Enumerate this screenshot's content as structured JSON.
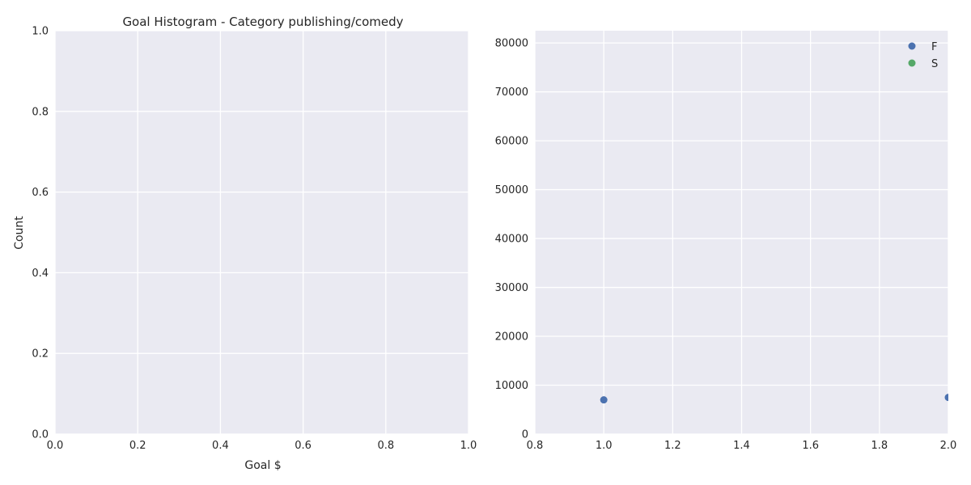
{
  "colors": {
    "plot_background": "#eaeaf2",
    "grid": "#ffffff",
    "text": "#262626",
    "series_F": "#4c72b0",
    "series_S": "#55a868"
  },
  "chart_data": [
    {
      "type": "bar",
      "title": "Goal Histogram - Category publishing/comedy",
      "xlabel": "Goal $",
      "ylabel": "Count",
      "xlim": [
        0,
        1
      ],
      "ylim": [
        0,
        1
      ],
      "xticks": [
        "0.0",
        "0.2",
        "0.4",
        "0.6",
        "0.8",
        "1.0"
      ],
      "yticks": [
        "0.0",
        "0.2",
        "0.4",
        "0.6",
        "0.8",
        "1.0"
      ],
      "grid": true,
      "series": []
    },
    {
      "type": "scatter",
      "title": "",
      "xlabel": "",
      "ylabel": "",
      "xlim": [
        0.8,
        2.0
      ],
      "ylim": [
        0,
        82500
      ],
      "xticks": [
        "0.8",
        "1.0",
        "1.2",
        "1.4",
        "1.6",
        "1.8",
        "2.0"
      ],
      "yticks": [
        "0",
        "10000",
        "20000",
        "30000",
        "40000",
        "50000",
        "60000",
        "70000",
        "80000"
      ],
      "grid": true,
      "legend_position": "top-right",
      "series": [
        {
          "name": "F",
          "points": [
            {
              "x": 1.0,
              "y": 7000
            },
            {
              "x": 2.0,
              "y": 7500
            }
          ]
        },
        {
          "name": "S",
          "points": []
        }
      ]
    }
  ]
}
